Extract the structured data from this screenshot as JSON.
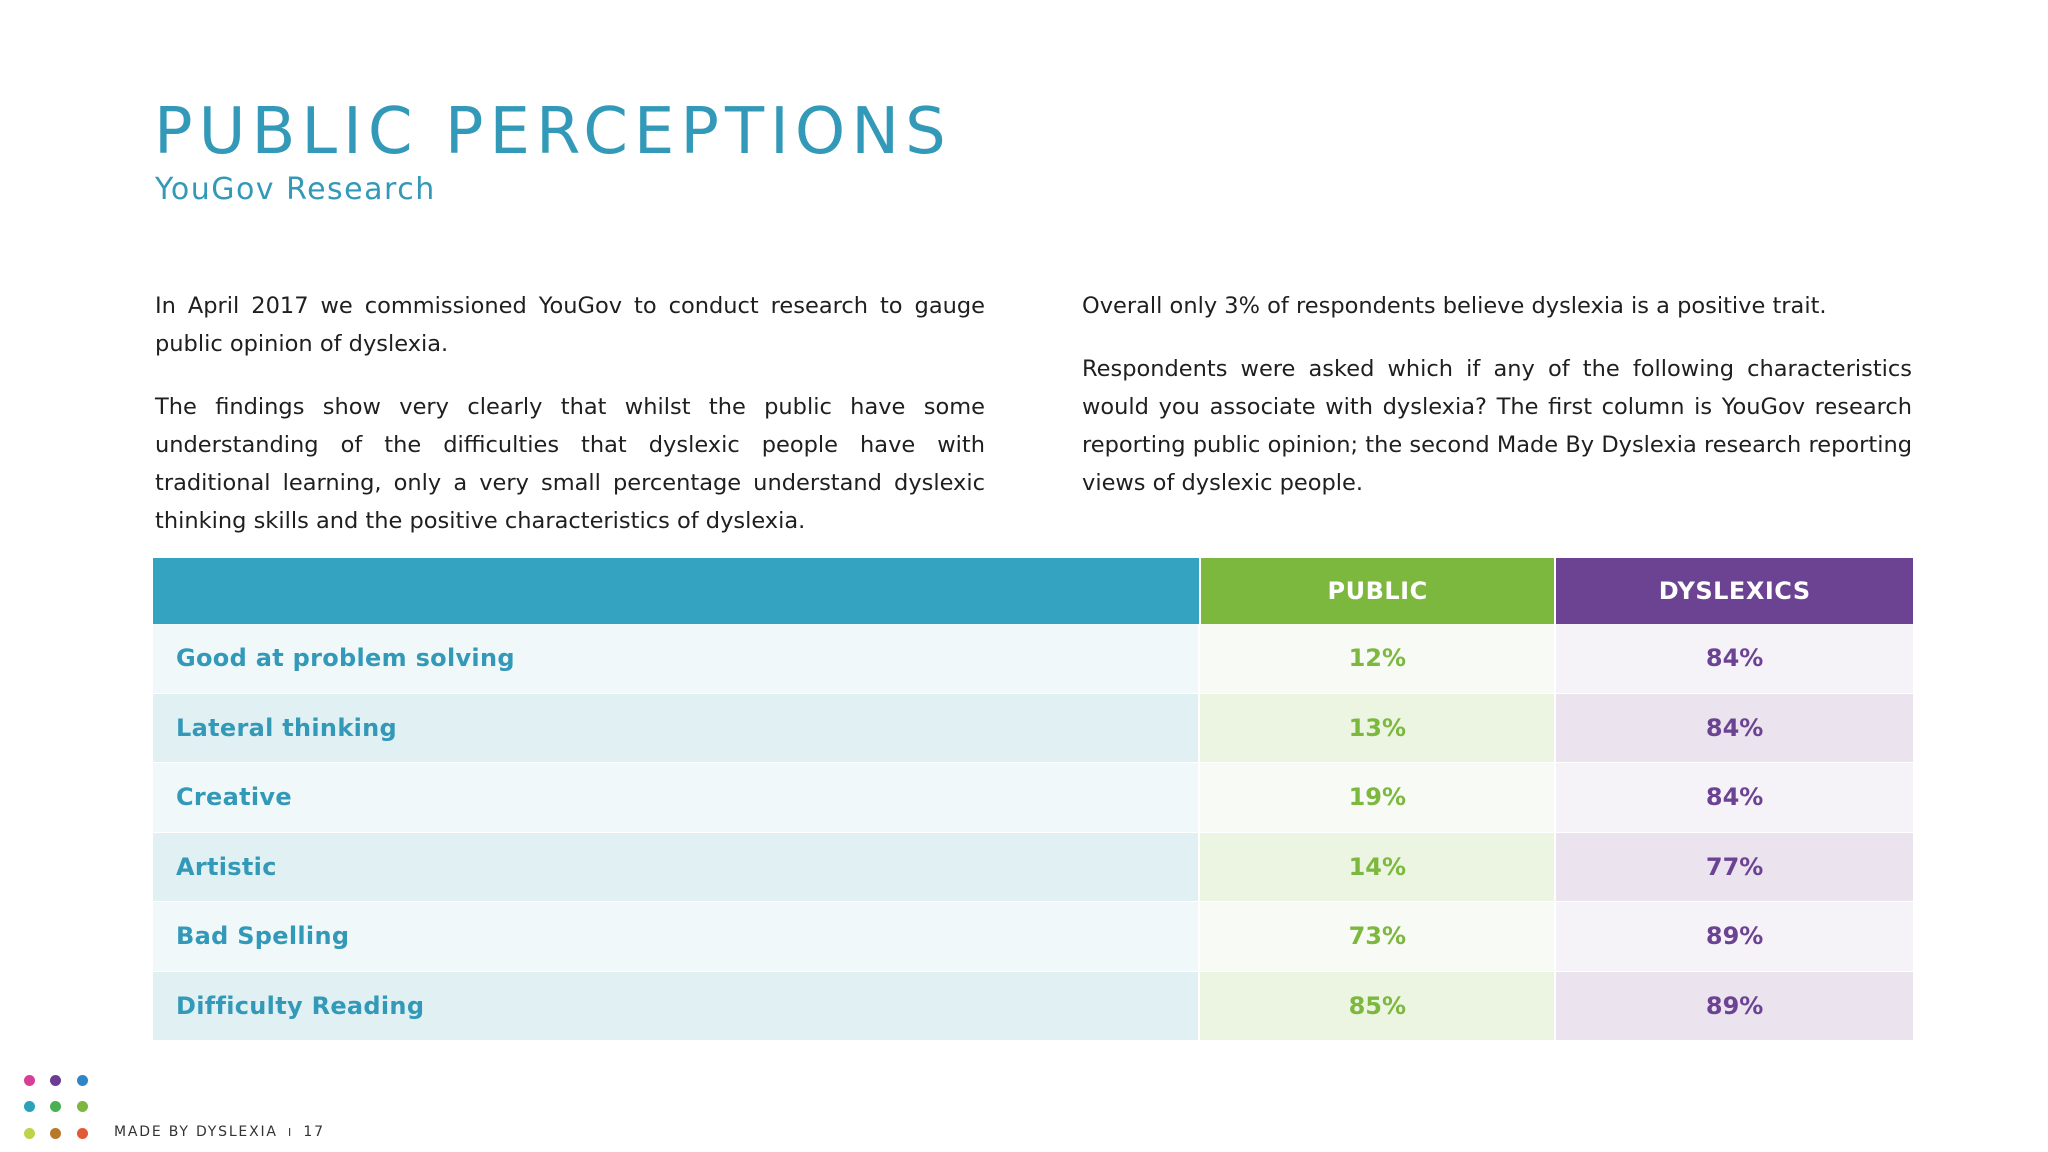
{
  "header": {
    "title": "PUBLIC PERCEPTIONS",
    "subtitle": "YouGov Research"
  },
  "intro": {
    "left": [
      "In April 2017 we commissioned YouGov to conduct research to gauge public opinion of dyslexia.",
      "The findings show very clearly that whilst the public have some understanding of the difficulties that dyslexic people have with traditional learning, only a very small percentage understand dyslexic thinking skills and the positive characteristics of dyslexia."
    ],
    "right": [
      "Overall only 3% of respondents believe dyslexia is a positive trait.",
      "Respondents were asked which if any of the following characteristics would you associate with dyslexia? The first column is YouGov research reporting public opinion; the second Made By Dyslexia research reporting views of dyslexic people."
    ]
  },
  "table": {
    "headers": {
      "label": "",
      "public": "PUBLIC",
      "dyslexics": "DYSLEXICS"
    },
    "rows": [
      {
        "label": "Good at problem solving",
        "public": "12%",
        "dyslexics": "84%"
      },
      {
        "label": "Lateral thinking",
        "public": "13%",
        "dyslexics": "84%"
      },
      {
        "label": "Creative",
        "public": "19%",
        "dyslexics": "84%"
      },
      {
        "label": "Artistic",
        "public": "14%",
        "dyslexics": "77%"
      },
      {
        "label": "Bad Spelling",
        "public": "73%",
        "dyslexics": "89%"
      },
      {
        "label": "Difficulty Reading",
        "public": "85%",
        "dyslexics": "89%"
      }
    ]
  },
  "colors": {
    "title": "#3399b8",
    "header_label": "#33a3c1",
    "header_public": "#7cb83d",
    "header_dyslexics": "#6c4393"
  },
  "logo": {
    "dot_colors": [
      "#d63f95",
      "#6a3d92",
      "#2e86c8",
      "#2aa3b8",
      "#4cae55",
      "#7cb83d",
      "#bfd34a",
      "#b8782a",
      "#e05a36"
    ]
  },
  "footer": {
    "brand": "MADE BY DYSLEXIA",
    "separator": "I",
    "page": "17"
  }
}
